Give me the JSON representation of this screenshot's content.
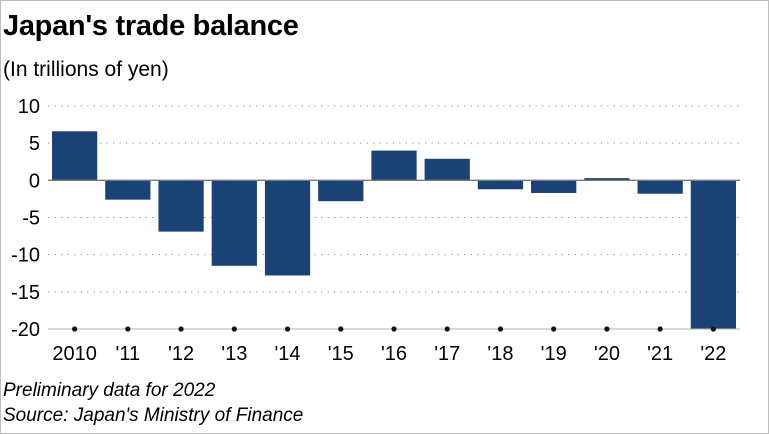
{
  "title": "Japan's trade balance",
  "subtitle": "(In trillions of yen)",
  "notes": {
    "preliminary": "Preliminary data for 2022",
    "source": "Source: Japan's Ministry of Finance"
  },
  "colors": {
    "bar": "#1a4274",
    "grid": "#9e9e9e",
    "axis": "#7a7a7a"
  },
  "chart_data": {
    "type": "bar",
    "categories": [
      "2010",
      "'11",
      "'12",
      "'13",
      "'14",
      "'15",
      "'16",
      "'17",
      "'18",
      "'19",
      "'20",
      "'21",
      "'22"
    ],
    "values": [
      6.6,
      -2.6,
      -6.9,
      -11.5,
      -12.8,
      -2.8,
      4.0,
      2.9,
      -1.2,
      -1.7,
      0.3,
      -1.8,
      -20.0
    ],
    "ylim": [
      -20,
      10
    ],
    "yticks": [
      10,
      5,
      0,
      -5,
      -10,
      -15,
      -20
    ],
    "grid": true,
    "legend": "none"
  }
}
